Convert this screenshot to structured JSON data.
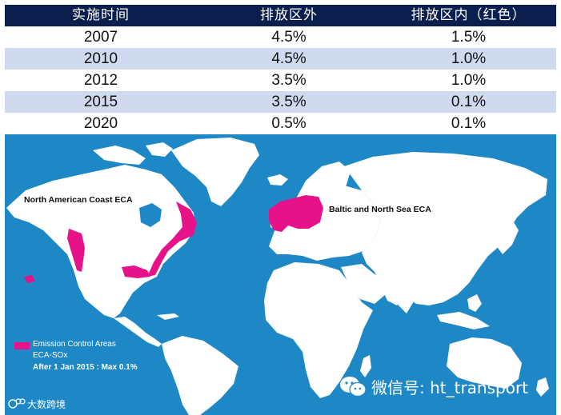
{
  "table": {
    "headers": [
      "实施时间",
      "排放区外",
      "排放区内（红色）"
    ],
    "rows": [
      [
        "2007",
        "4.5%",
        "1.5%"
      ],
      [
        "2010",
        "4.5%",
        "1.0%"
      ],
      [
        "2012",
        "3.5%",
        "1.0%"
      ],
      [
        "2015",
        "3.5%",
        "0.1%"
      ],
      [
        "2020",
        "0.5%",
        "0.1%"
      ]
    ]
  },
  "map": {
    "regions": {
      "north_america": "North American Coast ECA",
      "baltic": "Baltic and North Sea ECA"
    },
    "legend": {
      "title": "Emission Control Areas",
      "subtitle": "ECA-SOx",
      "note": "After 1 Jan 2015 : Max 0.1%"
    },
    "colors": {
      "ocean": "#1e88c7",
      "land": "#ffffff",
      "eca": "#e6128a",
      "header_bg": "#0a1f4e",
      "row_alt": "#cfdaef"
    }
  },
  "watermark": {
    "wechat": "微信号: ht_transport",
    "brand": "大数跨境"
  }
}
